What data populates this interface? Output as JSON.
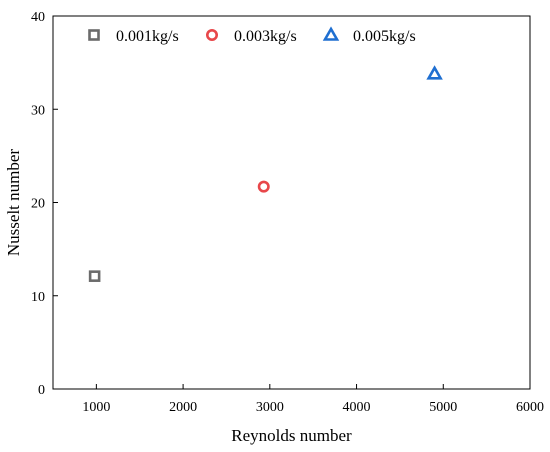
{
  "chart_data": {
    "type": "scatter",
    "title": "",
    "xlabel": "Reynolds number",
    "ylabel": "Nusselt number",
    "xlim": [
      500,
      6000
    ],
    "ylim": [
      0,
      40
    ],
    "xticks": [
      1000,
      2000,
      3000,
      4000,
      5000,
      6000
    ],
    "yticks": [
      0,
      10,
      20,
      30,
      40
    ],
    "grid": false,
    "legend_position": "top",
    "series": [
      {
        "name": "0.001kg/s",
        "marker": "square",
        "color": "#6b6b6b",
        "points": [
          {
            "x": 980,
            "y": 12.1
          }
        ]
      },
      {
        "name": "0.003kg/s",
        "marker": "circle",
        "color": "#e8474a",
        "points": [
          {
            "x": 2930,
            "y": 21.7
          }
        ]
      },
      {
        "name": "0.005kg/s",
        "marker": "triangle",
        "color": "#1f6fd1",
        "points": [
          {
            "x": 4900,
            "y": 33.8
          }
        ]
      }
    ]
  }
}
